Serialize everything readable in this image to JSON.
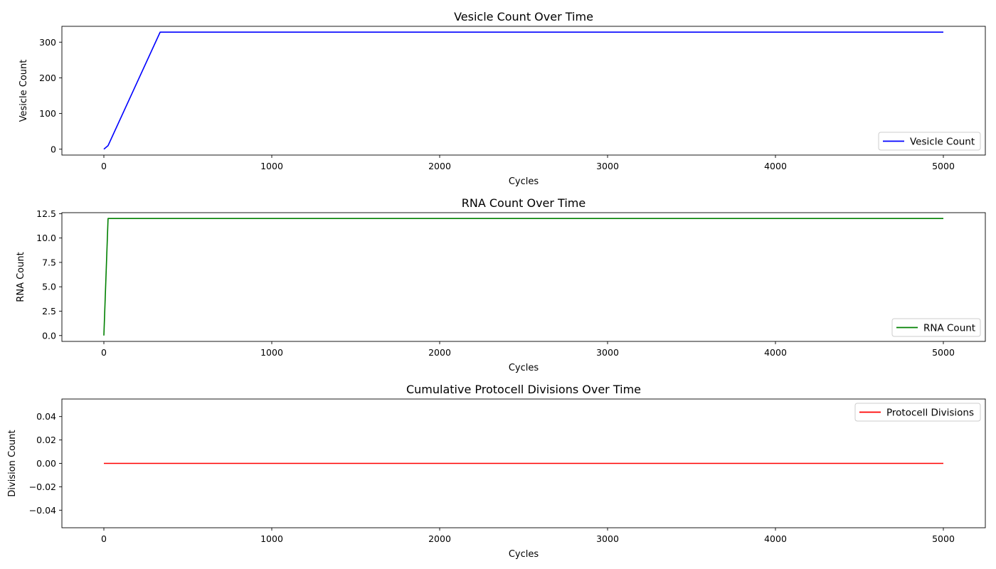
{
  "chart_data": [
    {
      "type": "line",
      "title": "Vesicle Count Over Time",
      "xlabel": "Cycles",
      "ylabel": "Vesicle Count",
      "xlim": [
        -250,
        5250
      ],
      "ylim": [
        -16.4,
        344.4
      ],
      "xticks": [
        0,
        1000,
        2000,
        3000,
        4000,
        5000
      ],
      "yticks": [
        0,
        100,
        200,
        300
      ],
      "ytick_labels": [
        "0",
        "100",
        "200",
        "300"
      ],
      "grid": false,
      "legend_position": "lower right",
      "series": [
        {
          "name": "Vesicle Count",
          "color": "#0000ff",
          "x": [
            0,
            25,
            335,
            5000
          ],
          "y": [
            0,
            10,
            328,
            328
          ]
        }
      ]
    },
    {
      "type": "line",
      "title": "RNA Count Over Time",
      "xlabel": "Cycles",
      "ylabel": "RNA Count",
      "xlim": [
        -250,
        5250
      ],
      "ylim": [
        -0.6,
        12.6
      ],
      "xticks": [
        0,
        1000,
        2000,
        3000,
        4000,
        5000
      ],
      "yticks": [
        0,
        2.5,
        5,
        7.5,
        10,
        12.5
      ],
      "ytick_labels": [
        "0.0",
        "2.5",
        "5.0",
        "7.5",
        "10.0",
        "12.5"
      ],
      "grid": false,
      "legend_position": "lower right",
      "series": [
        {
          "name": "RNA Count",
          "color": "#008000",
          "x": [
            0,
            25,
            5000
          ],
          "y": [
            0,
            12,
            12
          ]
        }
      ]
    },
    {
      "type": "line",
      "title": "Cumulative Protocell Divisions Over Time",
      "xlabel": "Cycles",
      "ylabel": "Division Count",
      "xlim": [
        -250,
        5250
      ],
      "ylim": [
        -0.055,
        0.055
      ],
      "xticks": [
        0,
        1000,
        2000,
        3000,
        4000,
        5000
      ],
      "yticks": [
        -0.04,
        -0.02,
        0,
        0.02,
        0.04
      ],
      "ytick_labels": [
        "−0.04",
        "−0.02",
        "0.00",
        "0.02",
        "0.04"
      ],
      "grid": false,
      "legend_position": "upper right",
      "series": [
        {
          "name": "Protocell Divisions",
          "color": "#ff0000",
          "x": [
            0,
            5000
          ],
          "y": [
            0,
            0
          ]
        }
      ]
    }
  ]
}
